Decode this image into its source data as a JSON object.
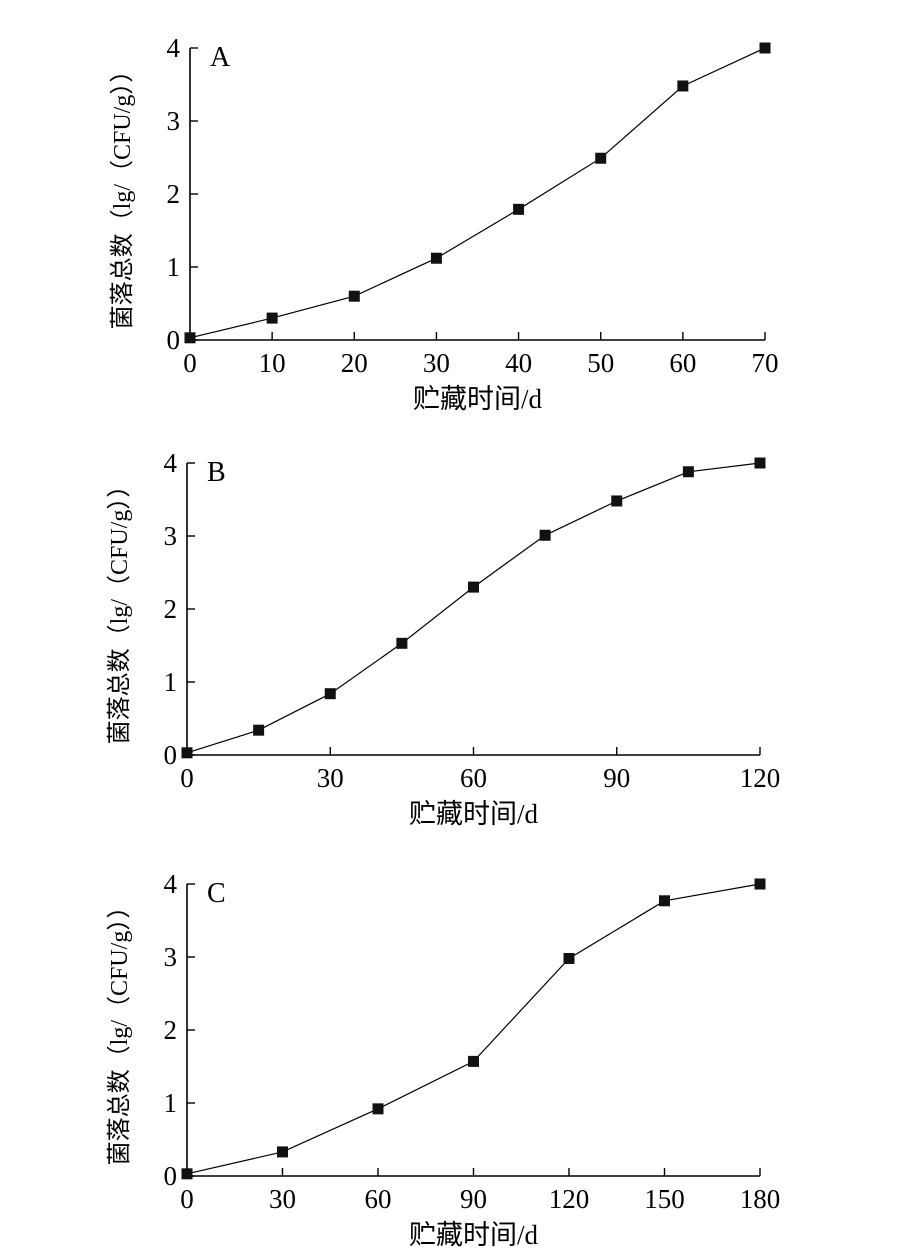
{
  "chart_data": [
    {
      "type": "line",
      "panel_label": "A",
      "xlabel": "贮藏时间/d",
      "ylabel": "菌落总数（lg/（CFU/g））",
      "x": [
        0,
        10,
        20,
        30,
        40,
        50,
        60,
        70
      ],
      "series": [
        {
          "values": [
            0.03,
            0.3,
            0.6,
            1.12,
            1.79,
            2.49,
            3.48,
            4.0
          ]
        }
      ],
      "xticks": [
        0,
        10,
        20,
        30,
        40,
        50,
        60,
        70
      ],
      "yticks": [
        0,
        1,
        2,
        3,
        4
      ],
      "xlim": [
        0,
        70
      ],
      "ylim": [
        0,
        4
      ],
      "grid": false,
      "marker": "square"
    },
    {
      "type": "line",
      "panel_label": "B",
      "xlabel": "贮藏时间/d",
      "ylabel": "菌落总数（lg/（CFU/g））",
      "x": [
        0,
        15,
        30,
        45,
        60,
        75,
        90,
        105,
        120
      ],
      "series": [
        {
          "values": [
            0.03,
            0.34,
            0.84,
            1.53,
            2.3,
            3.01,
            3.48,
            3.88,
            4.0
          ]
        }
      ],
      "xticks": [
        0,
        30,
        60,
        90,
        120
      ],
      "yticks": [
        0,
        1,
        2,
        3,
        4
      ],
      "xlim": [
        0,
        120
      ],
      "ylim": [
        0,
        4
      ],
      "grid": false,
      "marker": "square"
    },
    {
      "type": "line",
      "panel_label": "C",
      "xlabel": "贮藏时间/d",
      "ylabel": "菌落总数（lg/（CFU/g））",
      "x": [
        0,
        30,
        60,
        90,
        120,
        150,
        180
      ],
      "series": [
        {
          "values": [
            0.03,
            0.33,
            0.92,
            1.57,
            2.98,
            3.77,
            4.0
          ]
        }
      ],
      "xticks": [
        0,
        30,
        60,
        90,
        120,
        150,
        180
      ],
      "yticks": [
        0,
        1,
        2,
        3,
        4
      ],
      "xlim": [
        0,
        180
      ],
      "ylim": [
        0,
        4
      ],
      "grid": false,
      "marker": "square"
    }
  ]
}
